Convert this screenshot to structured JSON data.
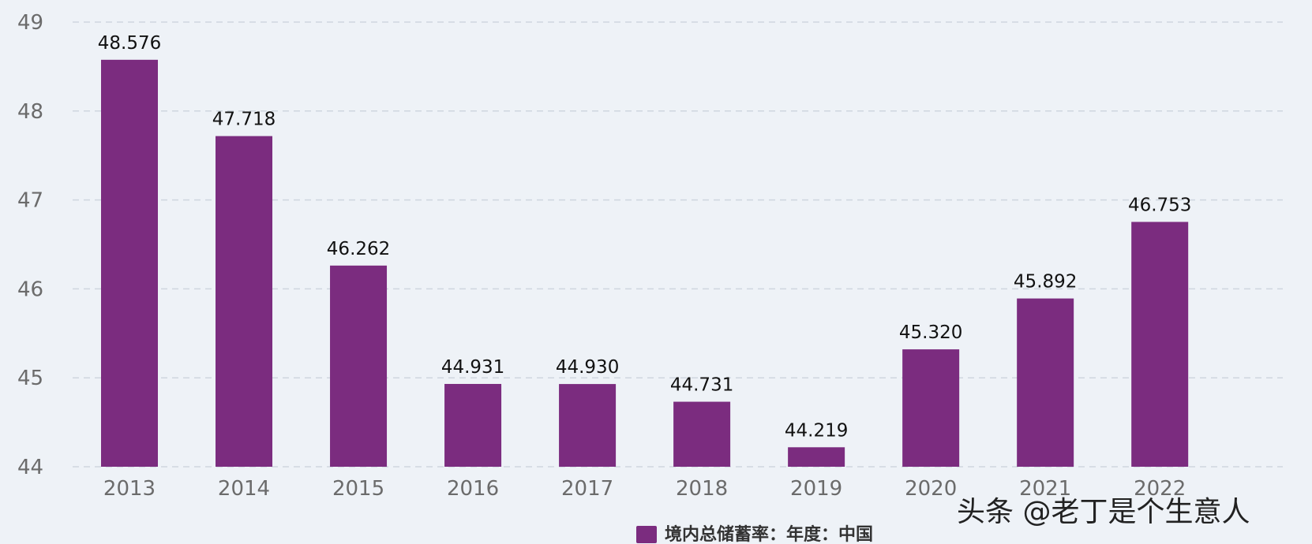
{
  "chart_data": {
    "type": "bar",
    "title": "",
    "xlabel": "",
    "ylabel": "",
    "categories": [
      "2013",
      "2014",
      "2015",
      "2016",
      "2017",
      "2018",
      "2019",
      "2020",
      "2021",
      "2022"
    ],
    "series": [
      {
        "name": "境内总储蓄率：年度：中国",
        "color": "#7b2c7f",
        "values": [
          48.576,
          47.718,
          46.262,
          44.931,
          44.93,
          44.731,
          44.219,
          45.32,
          45.892,
          46.753
        ],
        "labels": [
          "48.576",
          "47.718",
          "46.262",
          "44.931",
          "44.930",
          "44.731",
          "44.219",
          "45.320",
          "45.892",
          "46.753"
        ]
      }
    ],
    "ylim": [
      44,
      49
    ],
    "yticks": [
      "44",
      "45",
      "46",
      "47",
      "48",
      "49"
    ],
    "grid": true,
    "legend_position": "bottom-center"
  },
  "watermark": "头条 @老丁是个生意人"
}
